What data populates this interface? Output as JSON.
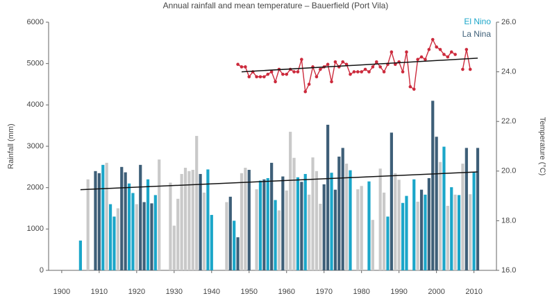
{
  "chart_data": {
    "type": "bar",
    "title": "Annual rainfall and mean temperature – Bauerfield (Port Vila)",
    "ylabel": "Rainfall (mm)",
    "y2label": "Temperature (°C)",
    "xlim": [
      1896.5,
      2016
    ],
    "xticks": [
      1900,
      1910,
      1920,
      1930,
      1940,
      1950,
      1960,
      1970,
      1980,
      1990,
      2000,
      2010
    ],
    "ylim": [
      0,
      6000
    ],
    "yticks": [
      0,
      1000,
      2000,
      3000,
      4000,
      5000,
      6000
    ],
    "y2lim": [
      16,
      26
    ],
    "y2ticks": [
      {
        "value": 16,
        "label": "16.0"
      },
      {
        "value": 18,
        "label": "18.0"
      },
      {
        "value": 20,
        "label": "20.0"
      },
      {
        "value": 22,
        "label": "22.0"
      },
      {
        "value": 24,
        "label": "24.0"
      },
      {
        "value": 26,
        "label": "26.0"
      }
    ],
    "legend": "top-right",
    "series": [
      {
        "name": "El Nino",
        "color": "#1ba6c9",
        "x": [
          1905,
          1911,
          1913,
          1914,
          1918,
          1919,
          1923,
          1925,
          1939,
          1940,
          1946,
          1953,
          1955,
          1957,
          1963,
          1965,
          1972,
          1977,
          1982,
          1987,
          1991,
          1992,
          1994,
          1997,
          2002,
          2004,
          2006,
          2010
        ],
        "values": [
          720,
          2550,
          1600,
          1300,
          2100,
          1870,
          2200,
          1820,
          2440,
          1340,
          1200,
          2170,
          2230,
          1700,
          2250,
          2330,
          2360,
          2420,
          2150,
          1300,
          1630,
          1800,
          2200,
          1830,
          2990,
          2010,
          1820,
          2370
        ]
      },
      {
        "name": "La Nina",
        "color": "#3e5f78",
        "x": [
          1909,
          1910,
          1916,
          1917,
          1921,
          1922,
          1924,
          1937,
          1945,
          1947,
          1950,
          1954,
          1956,
          1959,
          1964,
          1970,
          1971,
          1973,
          1974,
          1975,
          1988,
          1996,
          1998,
          1999,
          2000,
          2008,
          2011
        ],
        "values": [
          2400,
          2350,
          2500,
          2370,
          2550,
          1650,
          1620,
          2330,
          1780,
          800,
          2430,
          2200,
          2600,
          2270,
          2140,
          2080,
          3520,
          1950,
          2750,
          2960,
          3330,
          1950,
          2230,
          4100,
          3230,
          2960,
          2960
        ]
      },
      {
        "color": "#c9c9c9",
        "x": [
          1907,
          1912,
          1915,
          1920,
          1926,
          1929,
          1930,
          1931,
          1932,
          1933,
          1934,
          1935,
          1936,
          1938,
          1944,
          1948,
          1949,
          1952,
          1958,
          1960,
          1961,
          1962,
          1966,
          1967,
          1968,
          1969,
          1976,
          1979,
          1980,
          1983,
          1985,
          1986,
          1989,
          1990,
          1995,
          2001,
          2003,
          2005,
          2007,
          2009
        ],
        "values": [
          2200,
          2600,
          1500,
          1600,
          2680,
          2120,
          1080,
          1730,
          2330,
          2480,
          2400,
          2430,
          3250,
          1880,
          1650,
          2350,
          2480,
          1960,
          1450,
          1930,
          3350,
          2720,
          1830,
          2730,
          2400,
          1610,
          2580,
          1960,
          2040,
          1220,
          2460,
          1880,
          2350,
          2190,
          1660,
          2620,
          1560,
          1830,
          2580,
          1840
        ]
      },
      {
        "type": "line",
        "axis": "y2",
        "color": "#cc2a3c",
        "x": [
          1947,
          1948,
          1949,
          1950,
          1951,
          1952,
          1953,
          1954,
          1955,
          1956,
          1957,
          1958,
          1959,
          1960,
          1961,
          1962,
          1963,
          1964,
          1965,
          1966,
          1967,
          1968,
          1969,
          1970,
          1971,
          1972,
          1973,
          1974,
          1975,
          1976,
          1977,
          1978,
          1979,
          1980,
          1981,
          1982,
          1983,
          1984,
          1985,
          1986,
          1987,
          1988,
          1989,
          1990,
          1991,
          1992,
          1993,
          1994,
          1995,
          1996,
          1997,
          1998,
          1999,
          2000,
          2001,
          2002,
          2003,
          2004,
          2005,
          2006,
          2007,
          2008,
          2009
        ],
        "values": [
          24.3,
          24.2,
          24.2,
          23.8,
          24.0,
          23.8,
          23.8,
          23.8,
          23.9,
          24.0,
          23.6,
          24.1,
          23.9,
          23.9,
          24.1,
          24.0,
          24.0,
          24.5,
          23.2,
          23.5,
          24.2,
          23.8,
          24.1,
          24.2,
          24.3,
          23.6,
          24.4,
          24.2,
          24.4,
          24.3,
          23.9,
          24.0,
          24.0,
          24.0,
          24.1,
          24.0,
          24.2,
          24.4,
          24.2,
          24.0,
          24.3,
          24.8,
          24.3,
          24.4,
          24.0,
          24.8,
          23.4,
          23.3,
          24.5,
          24.6,
          24.5,
          24.9,
          25.3,
          25.0,
          24.9,
          24.7,
          24.6,
          24.8,
          24.7,
          null,
          24.1,
          24.9,
          24.1
        ]
      }
    ],
    "trends": [
      {
        "color": "#111111",
        "x": [
          1905,
          2011
        ],
        "values": [
          1950,
          2380
        ]
      },
      {
        "color": "#111111",
        "axis": "y2",
        "x": [
          1948,
          2011
        ],
        "values": [
          24.0,
          24.55
        ]
      }
    ]
  }
}
